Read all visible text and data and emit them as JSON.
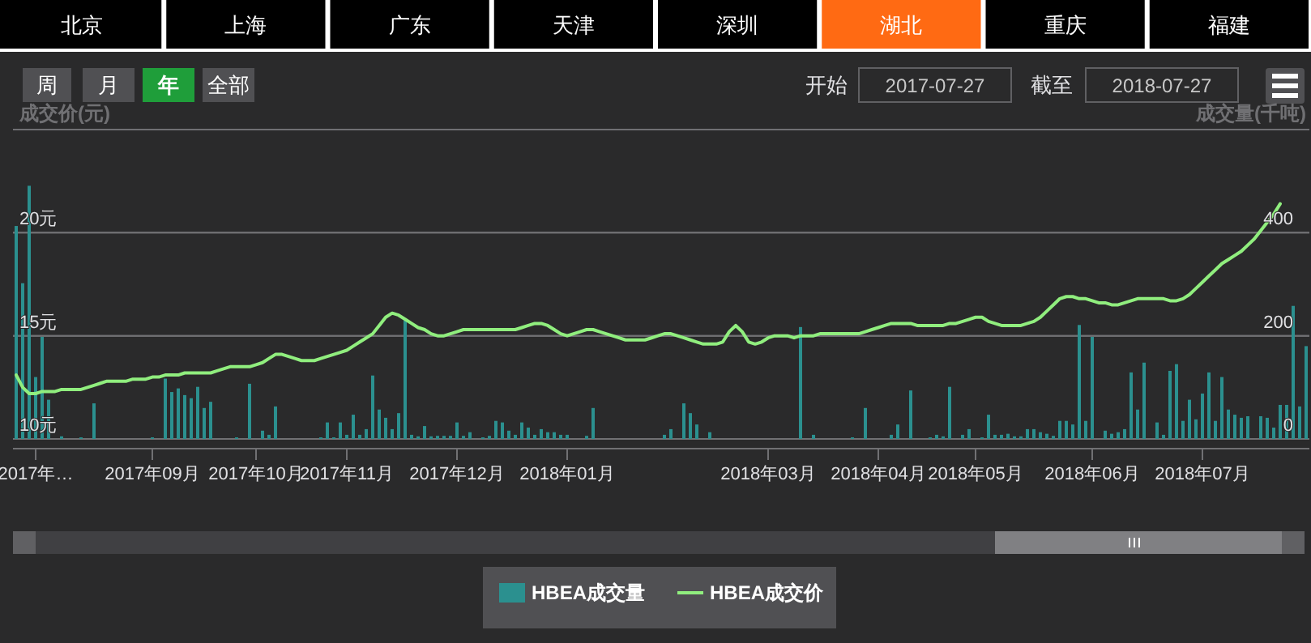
{
  "chart_data": {
    "type": "bar",
    "ylabel": "成交价(元)",
    "y2label": "成交量(千吨)",
    "categories": [
      null,
      null,
      null,
      "2017年…",
      null,
      null,
      null,
      null,
      null,
      null,
      null,
      null,
      null,
      null,
      null,
      null,
      null,
      null,
      null,
      null,
      null,
      "2017年09月",
      null,
      null,
      null,
      null,
      null,
      null,
      null,
      null,
      null,
      null,
      null,
      null,
      null,
      null,
      null,
      "2017年10月",
      null,
      null,
      null,
      null,
      null,
      null,
      null,
      null,
      null,
      null,
      null,
      null,
      null,
      "2017年11月",
      null,
      null,
      null,
      null,
      null,
      null,
      null,
      null,
      null,
      null,
      null,
      null,
      null,
      null,
      null,
      null,
      "2017年12月",
      null,
      null,
      null,
      null,
      null,
      null,
      null,
      null,
      null,
      null,
      null,
      null,
      null,
      null,
      null,
      null,
      "2018年01月",
      null,
      null,
      null,
      null,
      null,
      null,
      null,
      null,
      null,
      null,
      null,
      null,
      null,
      null,
      null,
      null,
      null,
      null,
      null,
      null,
      null,
      null,
      null,
      null,
      null,
      null,
      null,
      null,
      null,
      null,
      "2018年03月",
      null,
      null,
      null,
      null,
      null,
      null,
      null,
      null,
      null,
      null,
      null,
      null,
      null,
      null,
      null,
      null,
      "2018年04月",
      null,
      null,
      null,
      null,
      null,
      null,
      null,
      null,
      null,
      null,
      null,
      null,
      null,
      null,
      "2018年05月",
      null,
      null,
      null,
      null,
      null,
      null,
      null,
      null,
      null,
      null,
      null,
      null,
      null,
      null,
      null,
      null,
      null,
      "2018年06月",
      null,
      null,
      null,
      null,
      null,
      null,
      null,
      null,
      null,
      null,
      null,
      null,
      null,
      null,
      null,
      null,
      "2018年07月",
      null,
      null,
      null,
      null,
      null,
      null,
      null,
      null,
      null,
      null,
      null,
      null,
      null,
      null,
      null,
      null
    ],
    "series": [
      {
        "name": "HBEA成交量",
        "axis": "y2",
        "color": "#2b908f",
        "values": [
          413,
          302,
          491,
          120,
          198,
          76,
          0,
          5,
          0,
          0,
          3,
          0,
          69,
          0,
          0,
          0,
          0,
          0,
          0,
          0,
          0,
          3,
          0,
          117,
          91,
          98,
          85,
          79,
          101,
          60,
          72,
          0,
          0,
          0,
          3,
          0,
          107,
          0,
          16,
          8,
          63,
          0,
          0,
          0,
          0,
          0,
          0,
          3,
          32,
          3,
          32,
          8,
          47,
          8,
          19,
          123,
          57,
          41,
          19,
          50,
          230,
          8,
          5,
          25,
          5,
          6,
          6,
          6,
          32,
          6,
          13,
          0,
          3,
          6,
          35,
          32,
          16,
          8,
          32,
          22,
          8,
          19,
          13,
          13,
          8,
          8,
          0,
          0,
          6,
          60,
          0,
          0,
          0,
          0,
          0,
          0,
          0,
          0,
          0,
          0,
          8,
          19,
          0,
          69,
          50,
          28,
          0,
          13,
          0,
          0,
          0,
          0,
          0,
          0,
          0,
          0,
          0,
          0,
          0,
          0,
          0,
          217,
          0,
          8,
          0,
          0,
          0,
          0,
          0,
          3,
          0,
          60,
          0,
          0,
          0,
          8,
          28,
          0,
          94,
          0,
          0,
          3,
          8,
          5,
          101,
          0,
          8,
          19,
          0,
          3,
          47,
          8,
          8,
          10,
          5,
          5,
          19,
          19,
          13,
          10,
          6,
          35,
          35,
          28,
          221,
          35,
          198,
          0,
          16,
          10,
          13,
          19,
          129,
          57,
          148,
          0,
          32,
          8,
          132,
          145,
          35,
          76,
          38,
          88,
          129,
          35,
          120,
          57,
          47,
          41,
          44,
          0,
          44,
          41,
          22,
          66,
          66,
          258,
          63,
          180
        ]
      },
      {
        "name": "HBEA成交价",
        "type": "line",
        "axis": "y",
        "color": "#90ee7e",
        "values": [
          13.1,
          12.5,
          12.2,
          12.2,
          12.3,
          12.3,
          12.3,
          12.4,
          12.4,
          12.4,
          12.4,
          12.5,
          12.6,
          12.7,
          12.8,
          12.8,
          12.8,
          12.8,
          12.9,
          12.9,
          12.9,
          13.0,
          13.0,
          13.1,
          13.1,
          13.1,
          13.2,
          13.2,
          13.2,
          13.2,
          13.2,
          13.3,
          13.4,
          13.5,
          13.5,
          13.5,
          13.5,
          13.6,
          13.7,
          13.9,
          14.1,
          14.1,
          14.0,
          13.9,
          13.8,
          13.8,
          13.8,
          13.9,
          14.0,
          14.1,
          14.2,
          14.3,
          14.5,
          14.7,
          14.9,
          15.1,
          15.5,
          15.9,
          16.1,
          16.0,
          15.8,
          15.6,
          15.4,
          15.3,
          15.1,
          15.0,
          15.0,
          15.1,
          15.2,
          15.3,
          15.3,
          15.3,
          15.3,
          15.3,
          15.3,
          15.3,
          15.3,
          15.3,
          15.4,
          15.5,
          15.6,
          15.6,
          15.5,
          15.3,
          15.1,
          15.0,
          15.1,
          15.2,
          15.3,
          15.3,
          15.2,
          15.1,
          15.0,
          14.9,
          14.8,
          14.8,
          14.8,
          14.8,
          14.9,
          15.0,
          15.1,
          15.1,
          15.0,
          14.9,
          14.8,
          14.7,
          14.6,
          14.6,
          14.6,
          14.7,
          15.2,
          15.5,
          15.2,
          14.7,
          14.6,
          14.7,
          14.9,
          15.0,
          15.0,
          15.0,
          14.9,
          15.0,
          15.0,
          15.0,
          15.1,
          15.1,
          15.1,
          15.1,
          15.1,
          15.1,
          15.1,
          15.2,
          15.3,
          15.4,
          15.5,
          15.6,
          15.6,
          15.6,
          15.6,
          15.5,
          15.5,
          15.5,
          15.5,
          15.5,
          15.6,
          15.6,
          15.7,
          15.8,
          15.9,
          15.9,
          15.7,
          15.6,
          15.5,
          15.5,
          15.5,
          15.5,
          15.6,
          15.7,
          15.9,
          16.2,
          16.5,
          16.8,
          16.9,
          16.9,
          16.8,
          16.8,
          16.7,
          16.6,
          16.6,
          16.5,
          16.5,
          16.6,
          16.7,
          16.8,
          16.8,
          16.8,
          16.8,
          16.8,
          16.7,
          16.7,
          16.8,
          17.0,
          17.3,
          17.6,
          17.9,
          18.2,
          18.5,
          18.7,
          18.9,
          19.1,
          19.4,
          19.7,
          20.1,
          20.5,
          20.9,
          21.4,
          null,
          null,
          null,
          null
        ]
      }
    ],
    "ylim": [
      10,
      25
    ],
    "yticks": [
      {
        "value": 10,
        "label": "10元"
      },
      {
        "value": 15,
        "label": "15元"
      },
      {
        "value": 20,
        "label": "20元"
      },
      {
        "value": 25,
        "label": null
      }
    ],
    "y2lim": [
      0,
      600
    ],
    "y2ticks": [
      0,
      200,
      400,
      {
        "value": 600,
        "label": null
      }
    ],
    "grid": "y",
    "legend": "bottom",
    "annotations": [
      "北京",
      "上海",
      "广东",
      "天津",
      "深圳",
      "湖北",
      "重庆",
      "福建",
      "周",
      "月",
      "年",
      "全部",
      "开始",
      "2017-07-27",
      "截至",
      "2018-07-27"
    ]
  }
}
